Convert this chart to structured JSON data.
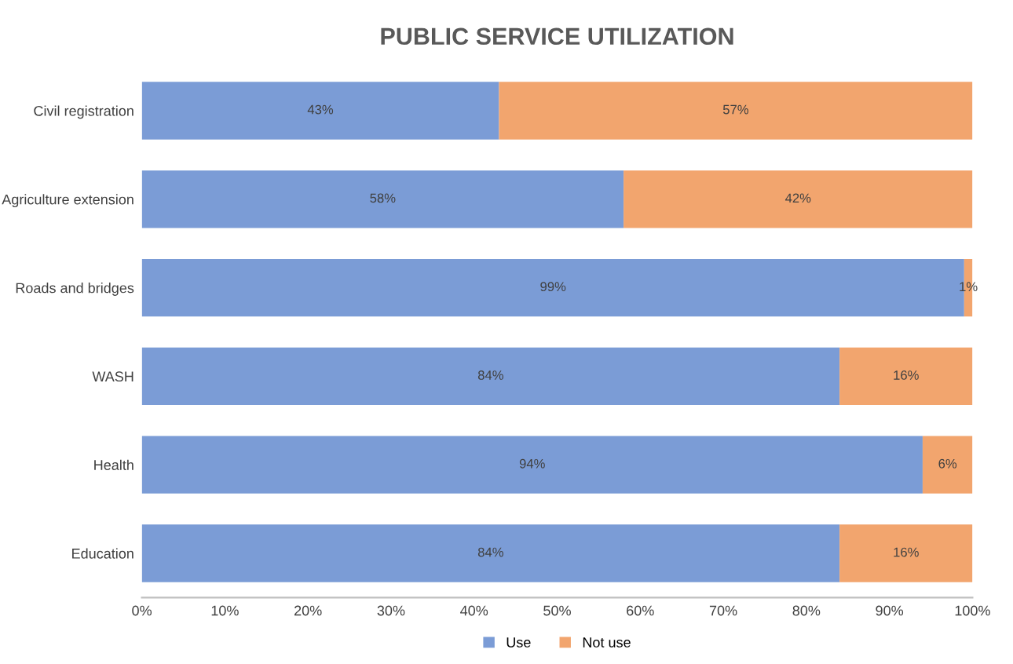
{
  "chart_data": {
    "type": "bar",
    "title": "PUBLIC SERVICE UTILIZATION",
    "orientation": "horizontal",
    "stacked": true,
    "categories": [
      "Civil registration",
      "Agriculture extension",
      "Roads and bridges",
      "WASH",
      "Health",
      "Education"
    ],
    "series": [
      {
        "name": "Use",
        "color": "#7b9cd6",
        "values": [
          43,
          58,
          99,
          84,
          94,
          84
        ],
        "value_labels": [
          "43%",
          "58%",
          "99%",
          "84%",
          "94%",
          "84%"
        ]
      },
      {
        "name": "Not use",
        "color": "#f2a56e",
        "values": [
          57,
          42,
          1,
          16,
          6,
          16
        ],
        "value_labels": [
          "57%",
          "42%",
          "1%",
          "16%",
          "6%",
          "16%"
        ]
      }
    ],
    "xlim": [
      0,
      100
    ],
    "xticks": [
      {
        "value": 0,
        "label": "0%"
      },
      {
        "value": 10,
        "label": "10%"
      },
      {
        "value": 20,
        "label": "20%"
      },
      {
        "value": 30,
        "label": "30%"
      },
      {
        "value": 40,
        "label": "40%"
      },
      {
        "value": 50,
        "label": "50%"
      },
      {
        "value": 60,
        "label": "60%"
      },
      {
        "value": 70,
        "label": "70%"
      },
      {
        "value": 80,
        "label": "80%"
      },
      {
        "value": 90,
        "label": "90%"
      },
      {
        "value": 100,
        "label": "100%"
      }
    ],
    "grid": false,
    "legend": "bottom"
  }
}
